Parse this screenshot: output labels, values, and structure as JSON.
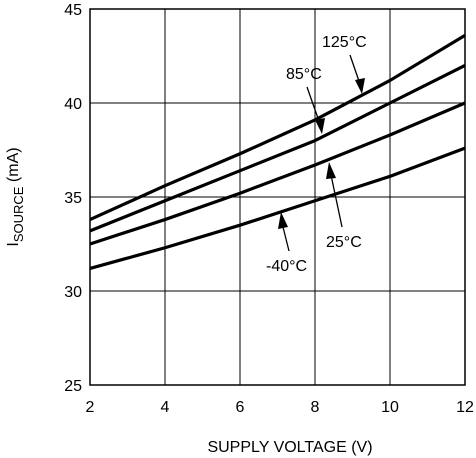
{
  "chart_data": {
    "type": "line",
    "xlabel": "SUPPLY VOLTAGE (V)",
    "ylabel_main": "I",
    "ylabel_sub": "SOURCE",
    "ylabel_unit": " (mA)",
    "xlim": [
      2,
      12
    ],
    "ylim": [
      25,
      45
    ],
    "xticks": [
      2,
      4,
      6,
      8,
      10,
      12
    ],
    "yticks": [
      25,
      30,
      35,
      40,
      45
    ],
    "grid": true,
    "series": [
      {
        "name": "125°C",
        "x": [
          2,
          4,
          6,
          8,
          10,
          12
        ],
        "y": [
          33.8,
          35.6,
          37.3,
          39.1,
          41.2,
          43.6
        ]
      },
      {
        "name": "85°C",
        "x": [
          2,
          4,
          6,
          8,
          10,
          12
        ],
        "y": [
          33.2,
          34.8,
          36.4,
          38.0,
          40.0,
          42.0
        ]
      },
      {
        "name": "25°C",
        "x": [
          2,
          4,
          6,
          8,
          10,
          12
        ],
        "y": [
          32.5,
          33.8,
          35.2,
          36.7,
          38.3,
          40.0
        ]
      },
      {
        "name": "-40°C",
        "x": [
          2,
          4,
          6,
          8,
          10,
          12
        ],
        "y": [
          31.2,
          32.3,
          33.5,
          34.8,
          36.1,
          37.6
        ]
      }
    ],
    "annotations": [
      {
        "label": "125°C",
        "series": 0
      },
      {
        "label": "85°C",
        "series": 1
      },
      {
        "label": "25°C",
        "series": 2
      },
      {
        "label": "-40°C",
        "series": 3
      }
    ]
  }
}
